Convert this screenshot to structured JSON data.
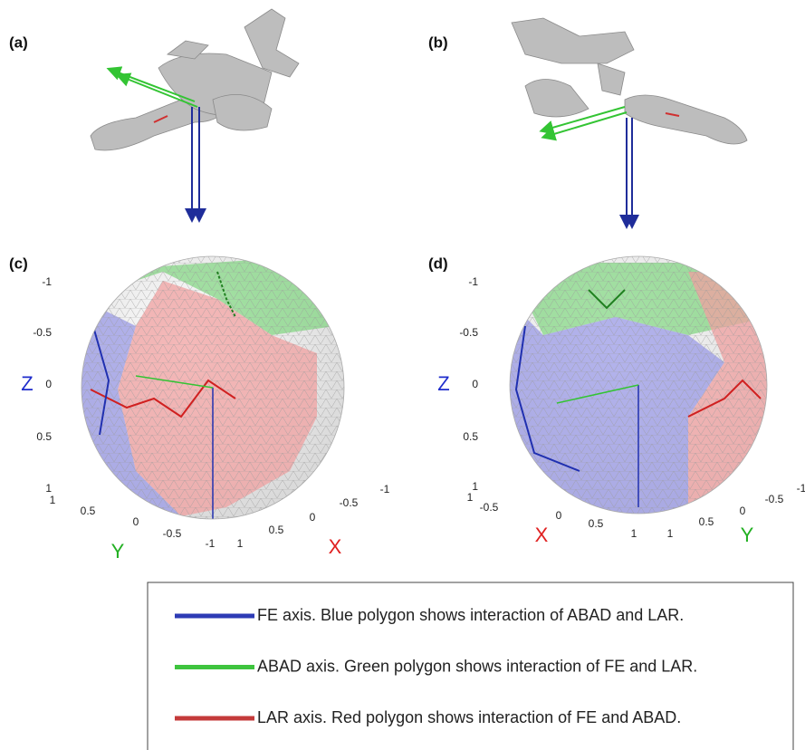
{
  "panels": [
    {
      "label": "(a)"
    },
    {
      "label": "(b)"
    },
    {
      "label": "(c)",
      "z_label": "Z",
      "y_label": "Y",
      "x_label": "X",
      "z_ticks": [
        "-1",
        "-0.5",
        "0",
        "0.5",
        "1"
      ],
      "y_ticks": [
        "1",
        "0.5",
        "0",
        "-0.5",
        "-1"
      ],
      "x_ticks": [
        "1",
        "0.5",
        "0",
        "-0.5",
        "-1"
      ]
    },
    {
      "label": "(d)",
      "z_label": "Z",
      "y_label": "Y",
      "x_label": "X",
      "z_ticks": [
        "-1",
        "-0.5",
        "0",
        "0.5",
        "1"
      ],
      "x_ticks": [
        "1",
        "-0.5",
        "0",
        "0.5",
        "1"
      ],
      "y_ticks": [
        "1",
        "0.5",
        "0",
        "-0.5",
        "-1"
      ]
    }
  ],
  "legend": [
    {
      "text": "FE axis. Blue polygon shows interaction of ABAD and LAR.",
      "color": "#2d3bb5"
    },
    {
      "text": "ABAD axis. Green polygon shows interaction of FE and LAR.",
      "color": "#3ec43e"
    },
    {
      "text": "LAR axis. Red polygon shows interaction of FE and ABAD.",
      "color": "#c43a3a"
    }
  ]
}
